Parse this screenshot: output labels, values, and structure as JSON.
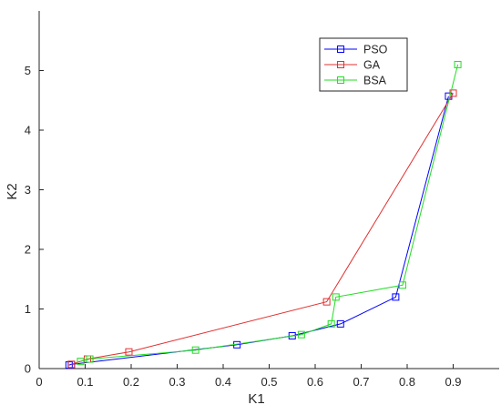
{
  "chart_data": {
    "type": "line",
    "xlabel": "K1",
    "ylabel": "K2",
    "xlim": [
      0,
      1
    ],
    "ylim": [
      0,
      6
    ],
    "grid": false,
    "legend_placement": "top-right",
    "x_ticks": [
      "0",
      "0.1",
      "0.2",
      "0.3",
      "0.4",
      "0.5",
      "0.6",
      "0.7",
      "0.8",
      "0.9"
    ],
    "y_ticks": [
      "0",
      "1",
      "2",
      "3",
      "4",
      "5"
    ],
    "series": [
      {
        "name": "PSO",
        "color": "#0000ff",
        "marker": "square",
        "points": [
          [
            0.065,
            0.06
          ],
          [
            0.07,
            0.07
          ],
          [
            0.43,
            0.4
          ],
          [
            0.55,
            0.55
          ],
          [
            0.655,
            0.75
          ],
          [
            0.775,
            1.2
          ],
          [
            0.89,
            4.57
          ]
        ]
      },
      {
        "name": "GA",
        "color": "#e03030",
        "marker": "square",
        "points": [
          [
            0.07,
            0.07
          ],
          [
            0.105,
            0.16
          ],
          [
            0.195,
            0.28
          ],
          [
            0.625,
            1.12
          ],
          [
            0.9,
            4.62
          ]
        ]
      },
      {
        "name": "BSA",
        "color": "#22dd22",
        "marker": "square",
        "points": [
          [
            0.09,
            0.12
          ],
          [
            0.11,
            0.16
          ],
          [
            0.34,
            0.31
          ],
          [
            0.57,
            0.57
          ],
          [
            0.635,
            0.75
          ],
          [
            0.645,
            1.2
          ],
          [
            0.79,
            1.4
          ],
          [
            0.91,
            5.1
          ]
        ]
      }
    ]
  }
}
